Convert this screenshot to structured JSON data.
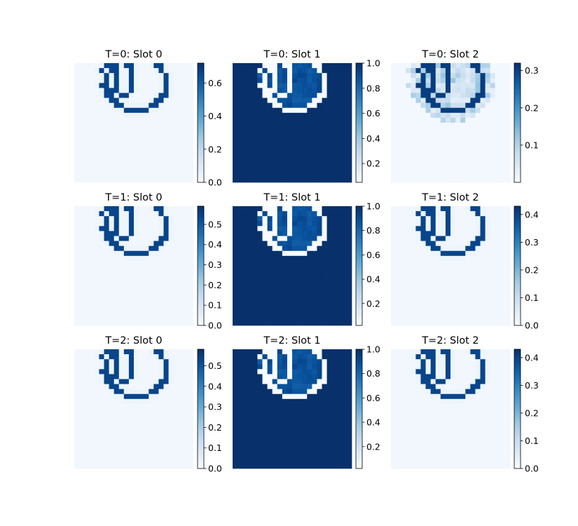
{
  "chart_data": {
    "type": "heatmap",
    "layout": "3x3 grid of heatmap panels, each with a vertical colorbar on the right",
    "colormap": "Blues",
    "colormap_stops": [
      "#f7fbff",
      "#deebf7",
      "#c6dbef",
      "#9ecae1",
      "#6baed6",
      "#4292c6",
      "#2171b5",
      "#08519c",
      "#08306b"
    ],
    "grid": false,
    "axes_visible": false,
    "grid_size": 24,
    "panels": [
      {
        "title": "T=0: Slot 0",
        "pattern": "contour_on_light",
        "value_range": [
          0.0,
          0.72
        ],
        "colorbar_ticks": [
          "0.0",
          "0.2",
          "0.4",
          "0.6"
        ],
        "colorbar_tick_values": [
          0.0,
          0.2,
          0.4,
          0.6
        ]
      },
      {
        "title": "T=0: Slot 1",
        "pattern": "contour_on_dark",
        "value_range": [
          0.05,
          1.0
        ],
        "colorbar_ticks": [
          "0.2",
          "0.4",
          "0.6",
          "0.8",
          "1.0"
        ],
        "colorbar_tick_values": [
          0.2,
          0.4,
          0.6,
          0.8,
          1.0
        ]
      },
      {
        "title": "T=0: Slot 2",
        "pattern": "contour_on_light_noisy",
        "value_range": [
          0.0,
          0.32
        ],
        "colorbar_ticks": [
          "0.1",
          "0.2",
          "0.3"
        ],
        "colorbar_tick_values": [
          0.1,
          0.2,
          0.3
        ]
      },
      {
        "title": "T=1: Slot 0",
        "pattern": "contour_on_light",
        "value_range": [
          0.0,
          0.59
        ],
        "colorbar_ticks": [
          "0.0",
          "0.1",
          "0.2",
          "0.3",
          "0.4",
          "0.5"
        ],
        "colorbar_tick_values": [
          0.0,
          0.1,
          0.2,
          0.3,
          0.4,
          0.5
        ]
      },
      {
        "title": "T=1: Slot 1",
        "pattern": "contour_on_dark",
        "value_range": [
          0.02,
          1.0
        ],
        "colorbar_ticks": [
          "0.2",
          "0.4",
          "0.6",
          "0.8",
          "1.0"
        ],
        "colorbar_tick_values": [
          0.2,
          0.4,
          0.6,
          0.8,
          1.0
        ]
      },
      {
        "title": "T=1: Slot 2",
        "pattern": "contour_on_light",
        "value_range": [
          0.0,
          0.43
        ],
        "colorbar_ticks": [
          "0.0",
          "0.1",
          "0.2",
          "0.3",
          "0.4"
        ],
        "colorbar_tick_values": [
          0.0,
          0.1,
          0.2,
          0.3,
          0.4
        ]
      },
      {
        "title": "T=2: Slot 0",
        "pattern": "contour_on_light",
        "value_range": [
          0.0,
          0.58
        ],
        "colorbar_ticks": [
          "0.0",
          "0.1",
          "0.2",
          "0.3",
          "0.4",
          "0.5"
        ],
        "colorbar_tick_values": [
          0.0,
          0.1,
          0.2,
          0.3,
          0.4,
          0.5
        ]
      },
      {
        "title": "T=2: Slot 1",
        "pattern": "contour_on_dark",
        "value_range": [
          0.02,
          1.0
        ],
        "colorbar_ticks": [
          "0.2",
          "0.4",
          "0.6",
          "0.8",
          "1.0"
        ],
        "colorbar_tick_values": [
          0.2,
          0.4,
          0.6,
          0.8,
          1.0
        ]
      },
      {
        "title": "T=2: Slot 2",
        "pattern": "contour_on_light",
        "value_range": [
          0.0,
          0.43
        ],
        "colorbar_ticks": [
          "0.0",
          "0.1",
          "0.2",
          "0.3",
          "0.4"
        ],
        "colorbar_tick_values": [
          0.0,
          0.1,
          0.2,
          0.3,
          0.4
        ]
      }
    ]
  }
}
